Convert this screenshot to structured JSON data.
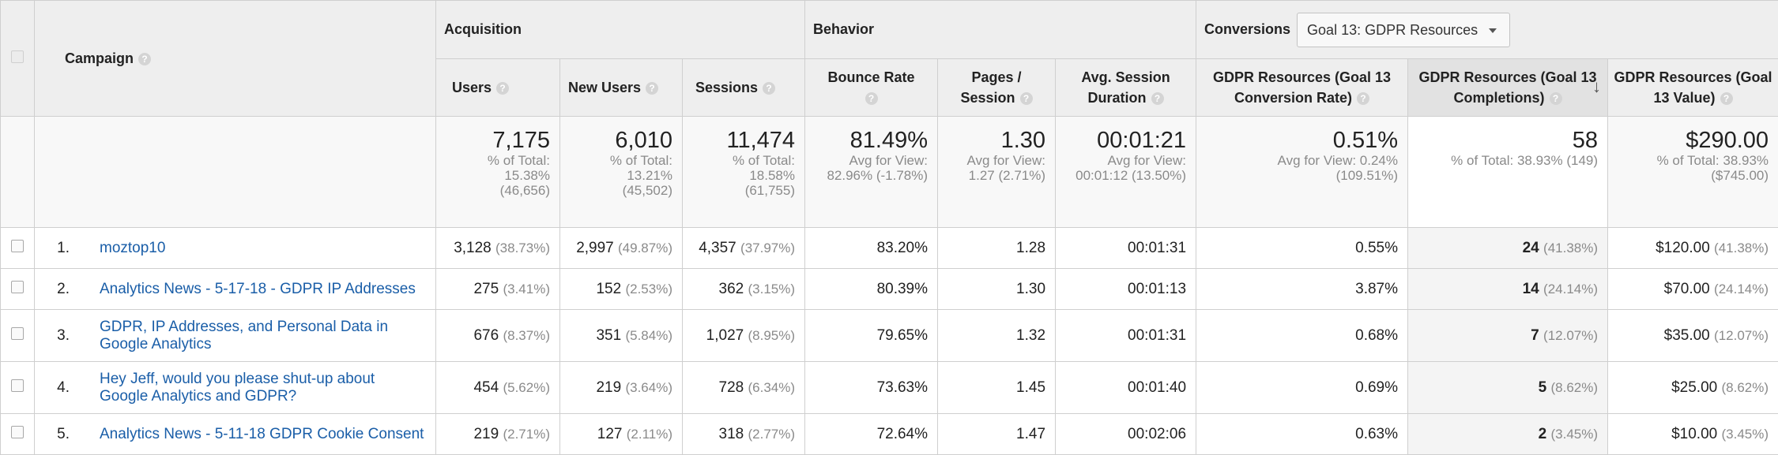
{
  "headers": {
    "campaign": "Campaign",
    "acquisition": "Acquisition",
    "behavior": "Behavior",
    "conversions": "Conversions",
    "goal_select": "Goal 13: GDPR Resources",
    "users": "Users",
    "new_users": "New Users",
    "sessions": "Sessions",
    "bounce_rate_1": "Bounce Rate",
    "pages_1": "Pages /",
    "pages_2": "Session",
    "avg_1": "Avg. Session",
    "avg_2": "Duration",
    "conv_rate_1": "GDPR Resources (Goal 13",
    "conv_rate_2": "Conversion Rate)",
    "completions_1": "GDPR Resources (Goal 13",
    "completions_2": "Completions)",
    "value_1": "GDPR Resources (Goal",
    "value_2": "13 Value)",
    "help": "?",
    "sort_arrow": "↓"
  },
  "totals": {
    "users": {
      "value": "7,175",
      "l1": "% of Total:",
      "l2": "15.38%",
      "l3": "(46,656)"
    },
    "new_users": {
      "value": "6,010",
      "l1": "% of Total:",
      "l2": "13.21%",
      "l3": "(45,502)"
    },
    "sessions": {
      "value": "11,474",
      "l1": "% of Total:",
      "l2": "18.58%",
      "l3": "(61,755)"
    },
    "bounce_rate": {
      "value": "81.49%",
      "l1": "Avg for View:",
      "l2": "82.96% (-1.78%)"
    },
    "pages": {
      "value": "1.30",
      "l1": "Avg for View:",
      "l2": "1.27 (2.71%)"
    },
    "duration": {
      "value": "00:01:21",
      "l1": "Avg for View:",
      "l2": "00:01:12 (13.50%)"
    },
    "conv_rate": {
      "value": "0.51%",
      "l1": "Avg for View: 0.24%",
      "l2": "(109.51%)"
    },
    "completions": {
      "value": "58",
      "l1": "% of Total: 38.93% (149)"
    },
    "goal_value": {
      "value": "$290.00",
      "l1": "% of Total: 38.93%",
      "l2": "($745.00)"
    }
  },
  "rows": [
    {
      "index": "1.",
      "campaign": "moztop10",
      "users": "3,128",
      "users_pct": "(38.73%)",
      "new_users": "2,997",
      "new_users_pct": "(49.87%)",
      "sessions": "4,357",
      "sessions_pct": "(37.97%)",
      "bounce_rate": "83.20%",
      "pages": "1.28",
      "duration": "00:01:31",
      "conv_rate": "0.55%",
      "completions": "24",
      "completions_pct": "(41.38%)",
      "goal_value": "$120.00",
      "goal_value_pct": "(41.38%)"
    },
    {
      "index": "2.",
      "campaign": "Analytics News - 5-17-18 - GDPR IP Addresses",
      "users": "275",
      "users_pct": "(3.41%)",
      "new_users": "152",
      "new_users_pct": "(2.53%)",
      "sessions": "362",
      "sessions_pct": "(3.15%)",
      "bounce_rate": "80.39%",
      "pages": "1.30",
      "duration": "00:01:13",
      "conv_rate": "3.87%",
      "completions": "14",
      "completions_pct": "(24.14%)",
      "goal_value": "$70.00",
      "goal_value_pct": "(24.14%)"
    },
    {
      "index": "3.",
      "campaign": "GDPR, IP Addresses, and Personal Data in Google Analytics",
      "users": "676",
      "users_pct": "(8.37%)",
      "new_users": "351",
      "new_users_pct": "(5.84%)",
      "sessions": "1,027",
      "sessions_pct": "(8.95%)",
      "bounce_rate": "79.65%",
      "pages": "1.32",
      "duration": "00:01:31",
      "conv_rate": "0.68%",
      "completions": "7",
      "completions_pct": "(12.07%)",
      "goal_value": "$35.00",
      "goal_value_pct": "(12.07%)"
    },
    {
      "index": "4.",
      "campaign": "Hey Jeff, would you please shut-up about Google Analytics and GDPR?",
      "users": "454",
      "users_pct": "(5.62%)",
      "new_users": "219",
      "new_users_pct": "(3.64%)",
      "sessions": "728",
      "sessions_pct": "(6.34%)",
      "bounce_rate": "73.63%",
      "pages": "1.45",
      "duration": "00:01:40",
      "conv_rate": "0.69%",
      "completions": "5",
      "completions_pct": "(8.62%)",
      "goal_value": "$25.00",
      "goal_value_pct": "(8.62%)"
    },
    {
      "index": "5.",
      "campaign": "Analytics News - 5-11-18 GDPR Cookie Consent",
      "users": "219",
      "users_pct": "(2.71%)",
      "new_users": "127",
      "new_users_pct": "(2.11%)",
      "sessions": "318",
      "sessions_pct": "(2.77%)",
      "bounce_rate": "72.64%",
      "pages": "1.47",
      "duration": "00:02:06",
      "conv_rate": "0.63%",
      "completions": "2",
      "completions_pct": "(3.45%)",
      "goal_value": "$10.00",
      "goal_value_pct": "(3.45%)"
    }
  ]
}
